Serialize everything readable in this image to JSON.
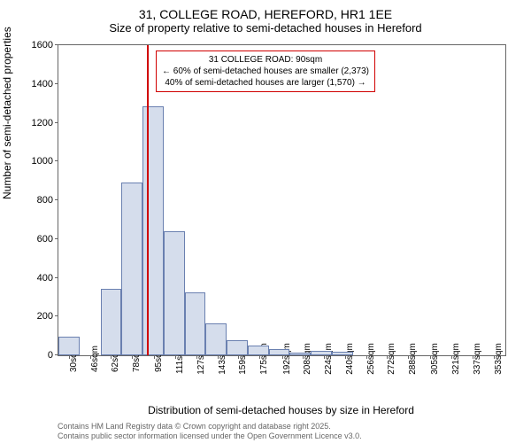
{
  "title_line1": "31, COLLEGE ROAD, HEREFORD, HR1 1EE",
  "title_line2": "Size of property relative to semi-detached houses in Hereford",
  "ylabel": "Number of semi-detached properties",
  "xlabel": "Distribution of semi-detached houses by size in Hereford",
  "footer_line1": "Contains HM Land Registry data © Crown copyright and database right 2025.",
  "footer_line2": "Contains public sector information licensed under the Open Government Licence v3.0.",
  "annotation": {
    "line1": "31 COLLEGE ROAD: 90sqm",
    "line2": "← 60% of semi-detached houses are smaller (2,373)",
    "line3": "40% of semi-detached houses are larger (1,570) →"
  },
  "chart": {
    "type": "histogram",
    "ylim": [
      0,
      1600
    ],
    "ytick_step": 200,
    "yticks": [
      0,
      200,
      400,
      600,
      800,
      1000,
      1200,
      1400,
      1600
    ],
    "x_start": 22,
    "x_end": 362,
    "xticks": [
      30,
      46,
      62,
      78,
      95,
      111,
      127,
      143,
      159,
      175,
      192,
      208,
      224,
      240,
      256,
      272,
      288,
      305,
      321,
      337,
      353
    ],
    "xtick_suffix": "sqm",
    "bar_fill": "#d5ddec",
    "bar_stroke": "#6a80b0",
    "marker_x": 90,
    "marker_color": "#d00000",
    "annotation_border": "#d00000",
    "background": "#ffffff",
    "bars": [
      {
        "x0": 22,
        "x1": 38,
        "y": 95
      },
      {
        "x0": 38,
        "x1": 54,
        "y": 0
      },
      {
        "x0": 54,
        "x1": 70,
        "y": 345
      },
      {
        "x0": 70,
        "x1": 86,
        "y": 890
      },
      {
        "x0": 86,
        "x1": 102,
        "y": 1285
      },
      {
        "x0": 102,
        "x1": 118,
        "y": 640
      },
      {
        "x0": 118,
        "x1": 134,
        "y": 325
      },
      {
        "x0": 134,
        "x1": 150,
        "y": 165
      },
      {
        "x0": 150,
        "x1": 166,
        "y": 80
      },
      {
        "x0": 166,
        "x1": 182,
        "y": 50
      },
      {
        "x0": 182,
        "x1": 198,
        "y": 30
      },
      {
        "x0": 198,
        "x1": 214,
        "y": 15
      },
      {
        "x0": 214,
        "x1": 230,
        "y": 25
      },
      {
        "x0": 230,
        "x1": 246,
        "y": 20
      },
      {
        "x0": 246,
        "x1": 262,
        "y": 0
      },
      {
        "x0": 262,
        "x1": 278,
        "y": 0
      },
      {
        "x0": 278,
        "x1": 294,
        "y": 0
      },
      {
        "x0": 294,
        "x1": 310,
        "y": 0
      },
      {
        "x0": 310,
        "x1": 326,
        "y": 0
      },
      {
        "x0": 326,
        "x1": 342,
        "y": 0
      },
      {
        "x0": 342,
        "x1": 358,
        "y": 0
      }
    ]
  }
}
